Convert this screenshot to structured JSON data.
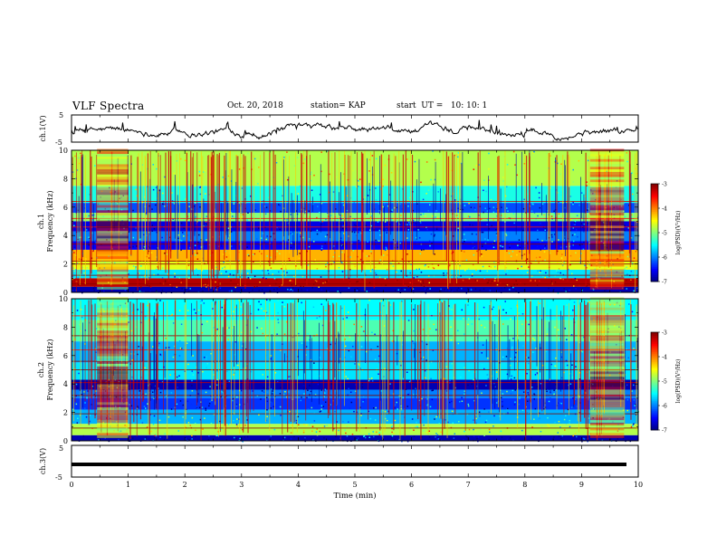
{
  "header": {
    "title": "VLF Spectra",
    "date": "Oct. 20, 2018",
    "station": "station= KAP",
    "start_time": "start  UT =   10: 10: 1"
  },
  "chart_data": [
    {
      "type": "line",
      "panel": "ch1-waveform",
      "ylabel": "ch.1(V)",
      "ylim": [
        -5,
        5
      ],
      "ytick_labels": [
        "-5",
        "5"
      ],
      "xlim": [
        0,
        10
      ],
      "description_values": "noisy waveform oscillating about -1 V, excursions roughly between -3 and +4 V"
    },
    {
      "type": "heatmap",
      "panel": "ch1-spectrogram",
      "ylabel": "Frequency (kHz)",
      "channel_label": "ch.1",
      "ylim": [
        0,
        10
      ],
      "ytick_labels": [
        "0",
        "2",
        "4",
        "6",
        "8",
        "10"
      ],
      "xlim": [
        0,
        10
      ],
      "colorbar": {
        "label": "log(PSD)(V²/Hz)",
        "range": [
          -7,
          -3
        ],
        "tick_labels": [
          "-7",
          "-6",
          "-5",
          "-4",
          "-3"
        ]
      },
      "bands_khz": [
        {
          "f0": 0.0,
          "f1": 0.4,
          "level": -6.8
        },
        {
          "f0": 0.4,
          "f1": 1.0,
          "level": -3.2
        },
        {
          "f0": 1.0,
          "f1": 1.6,
          "level": -5.6
        },
        {
          "f0": 1.6,
          "f1": 2.2,
          "level": -4.6
        },
        {
          "f0": 2.2,
          "f1": 3.0,
          "level": -4.2
        },
        {
          "f0": 3.0,
          "f1": 3.6,
          "level": -6.5
        },
        {
          "f0": 3.6,
          "f1": 4.3,
          "level": -6.0
        },
        {
          "f0": 4.3,
          "f1": 5.0,
          "level": -6.6
        },
        {
          "f0": 5.0,
          "f1": 5.6,
          "level": -5.0
        },
        {
          "f0": 5.6,
          "f1": 6.3,
          "level": -6.2
        },
        {
          "f0": 6.3,
          "f1": 7.5,
          "level": -5.4
        },
        {
          "f0": 7.5,
          "f1": 10.0,
          "level": -4.8
        }
      ],
      "active_intervals_min": [
        [
          0.45,
          1.0
        ],
        [
          9.15,
          9.75
        ]
      ],
      "tone_lines_khz": [
        0.6,
        0.9,
        1.2,
        2.0,
        2.2,
        3.4,
        4.6,
        5.2,
        6.4
      ]
    },
    {
      "type": "heatmap",
      "panel": "ch2-spectrogram",
      "ylabel": "Frequency (kHz)",
      "channel_label": "ch.2",
      "ylim": [
        0,
        10
      ],
      "ytick_labels": [
        "0",
        "2",
        "4",
        "6",
        "8",
        "10"
      ],
      "xlim": [
        0,
        10
      ],
      "colorbar": {
        "label": "log(PSD)(V²/Hz)",
        "range": [
          -7,
          -3
        ],
        "tick_labels": [
          "-7",
          "-6",
          "-5",
          "-4",
          "-3"
        ]
      },
      "bands_khz": [
        {
          "f0": 0.0,
          "f1": 0.4,
          "level": -6.8
        },
        {
          "f0": 0.4,
          "f1": 1.2,
          "level": -4.8
        },
        {
          "f0": 1.2,
          "f1": 2.2,
          "level": -5.8
        },
        {
          "f0": 2.2,
          "f1": 3.0,
          "level": -6.3
        },
        {
          "f0": 3.0,
          "f1": 3.6,
          "level": -6.0
        },
        {
          "f0": 3.6,
          "f1": 4.3,
          "level": -6.8
        },
        {
          "f0": 4.3,
          "f1": 5.5,
          "level": -5.6
        },
        {
          "f0": 5.5,
          "f1": 7.0,
          "level": -5.8
        },
        {
          "f0": 7.0,
          "f1": 8.5,
          "level": -5.2
        },
        {
          "f0": 8.5,
          "f1": 10.0,
          "level": -5.5
        }
      ],
      "active_intervals_min": [
        [
          0.45,
          1.0
        ],
        [
          9.15,
          9.75
        ]
      ],
      "tone_lines_khz": [
        0.9,
        1.9,
        3.2,
        4.1,
        5.0,
        5.6,
        6.4,
        7.4,
        8.8
      ]
    },
    {
      "type": "line",
      "panel": "ch3-waveform",
      "ylabel": "ch.3(V)",
      "ylim": [
        -5,
        5
      ],
      "ytick_labels": [
        "-5",
        "5"
      ],
      "xlim": [
        0,
        10
      ],
      "constant_value": -1,
      "xlabel": "Time  (min)",
      "xtick_labels": [
        "0",
        "1",
        "2",
        "3",
        "4",
        "5",
        "6",
        "7",
        "8",
        "9",
        "10"
      ]
    }
  ]
}
